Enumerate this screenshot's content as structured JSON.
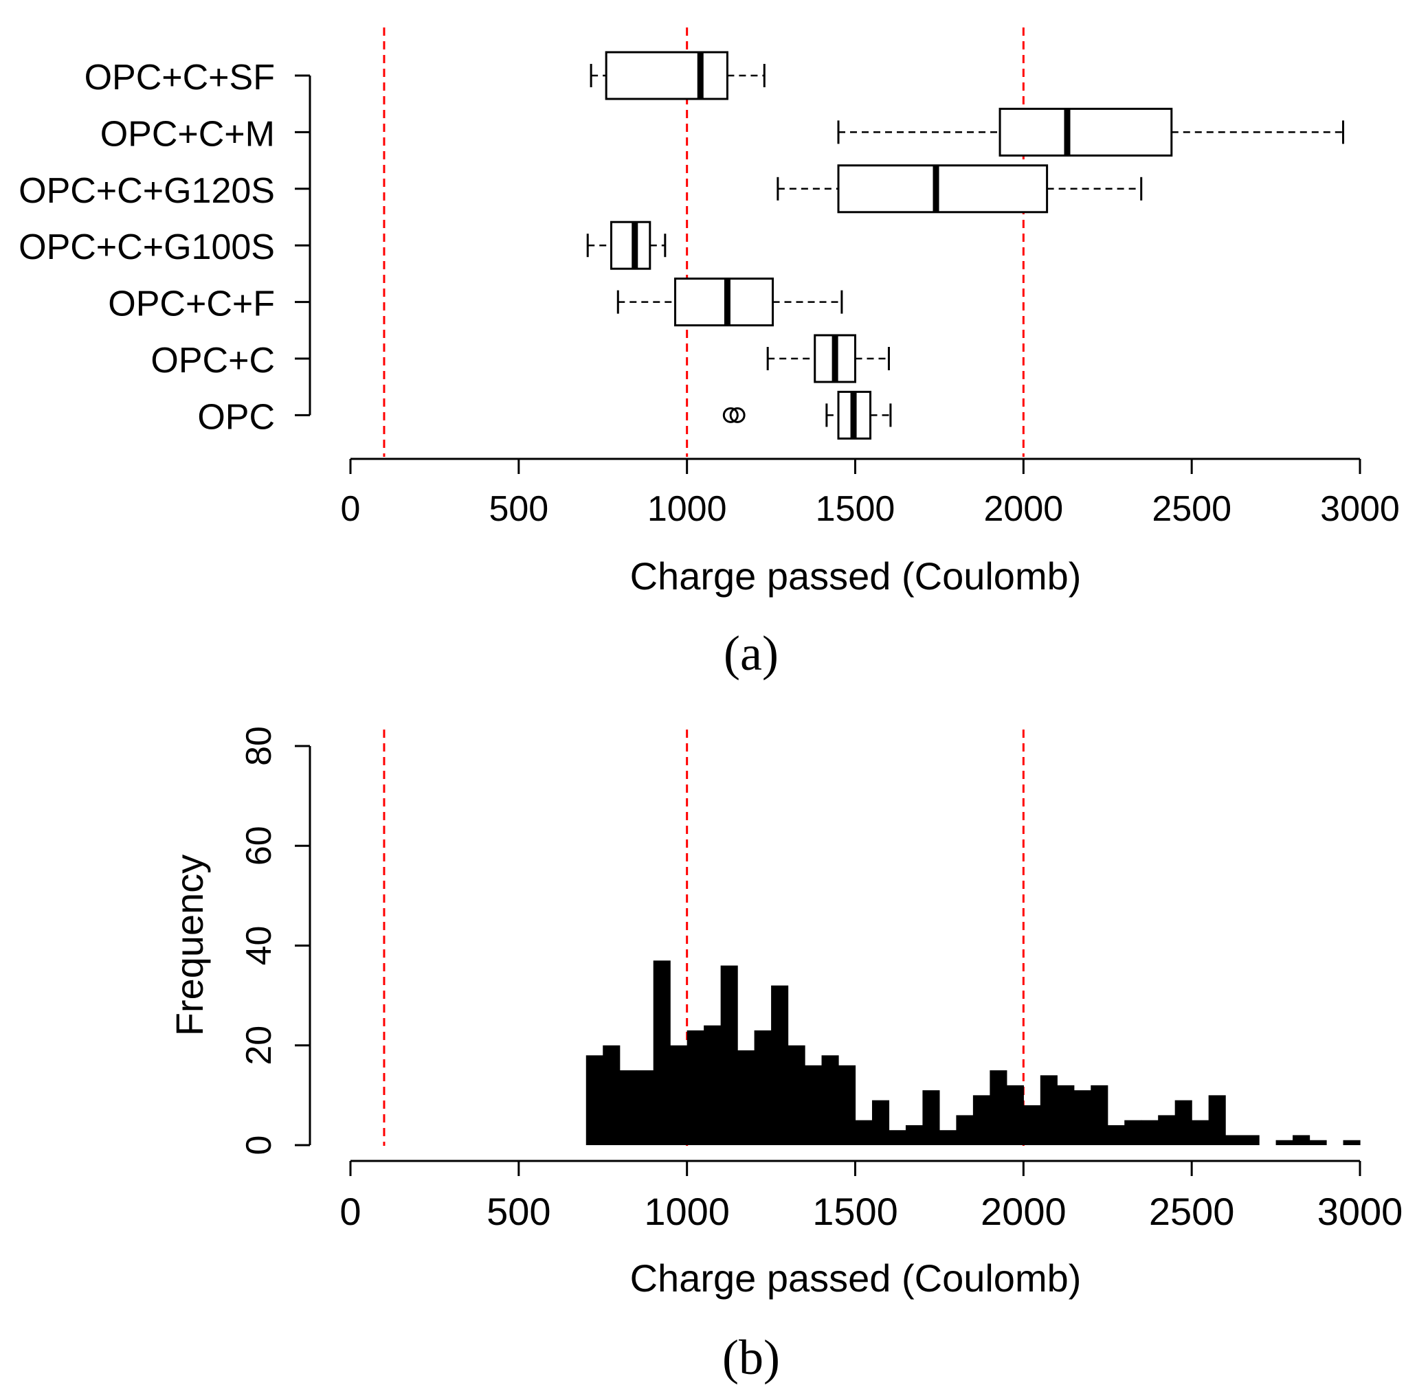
{
  "chart_data": [
    {
      "type": "boxplot",
      "orientation": "horizontal",
      "panel_label": "(a)",
      "xlabel": "Charge passed (Coulomb)",
      "xlim": [
        0,
        3000
      ],
      "x_ticks": [
        0,
        500,
        1000,
        1500,
        2000,
        2500,
        3000
      ],
      "reference_lines": [
        100,
        1000,
        2000
      ],
      "categories": [
        "OPC+C+SF",
        "OPC+C+M",
        "OPC+C+G120S",
        "OPC+C+G100S",
        "OPC+C+F",
        "OPC+C",
        "OPC"
      ],
      "boxes": [
        {
          "whisker_low": 715,
          "q1": 760,
          "median": 1040,
          "q3": 1120,
          "whisker_high": 1230,
          "outliers": []
        },
        {
          "whisker_low": 1450,
          "q1": 1930,
          "median": 2130,
          "q3": 2440,
          "whisker_high": 2950,
          "outliers": []
        },
        {
          "whisker_low": 1270,
          "q1": 1450,
          "median": 1740,
          "q3": 2070,
          "whisker_high": 2350,
          "outliers": []
        },
        {
          "whisker_low": 705,
          "q1": 775,
          "median": 845,
          "q3": 890,
          "whisker_high": 935,
          "outliers": []
        },
        {
          "whisker_low": 795,
          "q1": 965,
          "median": 1120,
          "q3": 1255,
          "whisker_high": 1460,
          "outliers": []
        },
        {
          "whisker_low": 1240,
          "q1": 1380,
          "median": 1440,
          "q3": 1500,
          "whisker_high": 1600,
          "outliers": []
        },
        {
          "whisker_low": 1415,
          "q1": 1450,
          "median": 1495,
          "q3": 1545,
          "whisker_high": 1605,
          "outliers": [
            1130,
            1150
          ]
        }
      ]
    },
    {
      "type": "histogram",
      "panel_label": "(b)",
      "xlabel": "Charge passed (Coulomb)",
      "ylabel": "Frequency",
      "xlim": [
        0,
        3000
      ],
      "ylim": [
        0,
        80
      ],
      "x_ticks": [
        0,
        500,
        1000,
        1500,
        2000,
        2500,
        3000
      ],
      "y_ticks": [
        0,
        20,
        40,
        60,
        80
      ],
      "reference_lines": [
        100,
        1000,
        2000
      ],
      "bin_width": 50,
      "bin_start": 700,
      "bin_end": 3000,
      "frequencies": [
        18,
        20,
        15,
        15,
        37,
        20,
        23,
        24,
        36,
        19,
        23,
        32,
        20,
        16,
        18,
        16,
        5,
        9,
        3,
        4,
        11,
        3,
        6,
        10,
        15,
        12,
        8,
        14,
        12,
        11,
        12,
        4,
        5,
        5,
        6,
        9,
        5,
        10,
        2,
        2,
        0,
        1,
        2,
        1,
        0,
        1
      ]
    }
  ]
}
